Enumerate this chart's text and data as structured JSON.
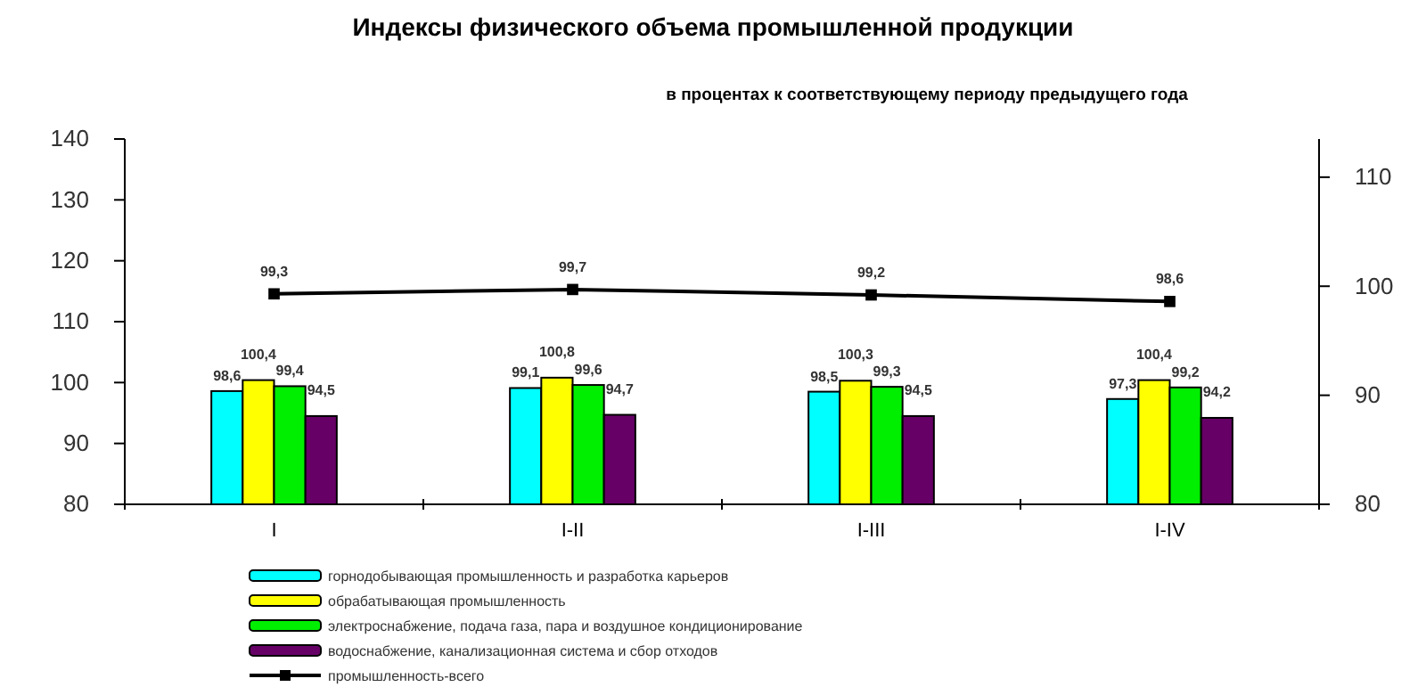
{
  "chart_data": {
    "type": "bar",
    "title": "Индексы физического объема промышленной продукции",
    "subtitle": "в процентах к соответствующему периоду предыдущего года",
    "categories": [
      "I",
      "I-II",
      "I-III",
      "I-IV"
    ],
    "series": [
      {
        "name": "горнодобывающая промышленность и разработка карьеров",
        "color": "#00ffff",
        "values": [
          98.6,
          99.1,
          98.5,
          97.3
        ],
        "value_labels": [
          "98,6",
          "99,1",
          "98,5",
          "97,3"
        ]
      },
      {
        "name": "обрабатывающая промышленность",
        "color": "#ffff00",
        "values": [
          100.4,
          100.8,
          100.3,
          100.4
        ],
        "value_labels": [
          "100,4",
          "100,8",
          "100,3",
          "100,4"
        ]
      },
      {
        "name": "электроснабжение, подача газа, пара и воздушное кондиционирование",
        "color": "#00ee00",
        "values": [
          99.4,
          99.6,
          99.3,
          99.2
        ],
        "value_labels": [
          "99,4",
          "99,6",
          "99,3",
          "99,2"
        ]
      },
      {
        "name": "водоснабжение, канализационная система и сбор отходов",
        "color": "#660066",
        "values": [
          94.5,
          94.7,
          94.5,
          94.2
        ],
        "value_labels": [
          "94,5",
          "94,7",
          "94,5",
          "94,2"
        ]
      },
      {
        "name": "промышленность-всего",
        "color": "#000000",
        "type": "line",
        "axis": "y2",
        "marker": "square",
        "values": [
          99.3,
          99.7,
          99.2,
          98.6
        ],
        "value_labels": [
          "99,3",
          "99,7",
          "99,2",
          "98,6"
        ]
      }
    ],
    "ylim": [
      80,
      140
    ],
    "yticks": [
      80,
      90,
      100,
      110,
      120,
      130,
      140
    ],
    "y2lim": [
      80,
      113.5
    ],
    "y2ticks": [
      80,
      90,
      100,
      110
    ],
    "grid": false,
    "legend": "bottom"
  }
}
